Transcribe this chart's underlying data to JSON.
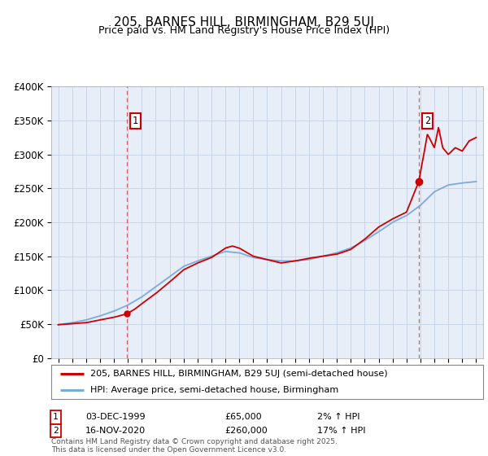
{
  "title": "205, BARNES HILL, BIRMINGHAM, B29 5UJ",
  "subtitle": "Price paid vs. HM Land Registry's House Price Index (HPI)",
  "legend_line1": "205, BARNES HILL, BIRMINGHAM, B29 5UJ (semi-detached house)",
  "legend_line2": "HPI: Average price, semi-detached house, Birmingham",
  "footnote": "Contains HM Land Registry data © Crown copyright and database right 2025.\nThis data is licensed under the Open Government Licence v3.0.",
  "annotation1_label": "1",
  "annotation1_date": "03-DEC-1999",
  "annotation1_price": "£65,000",
  "annotation1_hpi": "2% ↑ HPI",
  "annotation2_label": "2",
  "annotation2_date": "16-NOV-2020",
  "annotation2_price": "£260,000",
  "annotation2_hpi": "17% ↑ HPI",
  "point1_x": 1999.92,
  "point1_y": 65000,
  "point2_x": 2020.88,
  "point2_y": 260000,
  "red_color": "#cc0000",
  "blue_color": "#7aabdb",
  "plot_bg_color": "#e8eef8",
  "outer_bg_color": "#ffffff",
  "grid_color": "#c8d4e8",
  "ylim": [
    0,
    400000
  ],
  "xlim": [
    1994.5,
    2025.5
  ],
  "red_knots": [
    1995,
    1996,
    1997,
    1998,
    1999.0,
    1999.92,
    2000.5,
    2001,
    2002,
    2003,
    2004,
    2005,
    2006,
    2007,
    2007.5,
    2008,
    2009,
    2010,
    2011,
    2012,
    2013,
    2014,
    2015,
    2016,
    2017,
    2018,
    2019,
    2019.5,
    2020,
    2020.88,
    2021.2,
    2021.5,
    2022,
    2022.3,
    2022.6,
    2023,
    2023.5,
    2024,
    2024.5,
    2025
  ],
  "red_vals": [
    49000,
    50500,
    52000,
    56000,
    60000,
    65000,
    72000,
    80000,
    95000,
    112000,
    130000,
    140000,
    148000,
    162000,
    165000,
    162000,
    150000,
    145000,
    140000,
    143000,
    147000,
    150000,
    153000,
    160000,
    175000,
    193000,
    205000,
    210000,
    215000,
    260000,
    295000,
    330000,
    310000,
    340000,
    310000,
    300000,
    310000,
    305000,
    320000,
    325000
  ],
  "hpi_knots": [
    1995,
    1996,
    1997,
    1998,
    1999,
    2000,
    2001,
    2002,
    2003,
    2004,
    2005,
    2006,
    2007,
    2008,
    2009,
    2010,
    2011,
    2012,
    2013,
    2014,
    2015,
    2016,
    2017,
    2018,
    2019,
    2020,
    2021,
    2022,
    2023,
    2024,
    2025
  ],
  "hpi_vals": [
    49000,
    52000,
    56000,
    62000,
    69000,
    78000,
    90000,
    105000,
    120000,
    135000,
    143000,
    150000,
    157000,
    155000,
    148000,
    145000,
    143000,
    143000,
    145000,
    150000,
    155000,
    162000,
    173000,
    186000,
    200000,
    210000,
    225000,
    245000,
    255000,
    258000,
    260000
  ]
}
